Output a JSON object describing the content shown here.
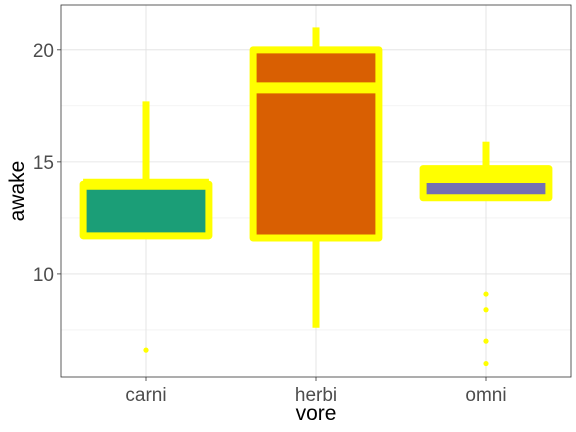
{
  "chart_data": {
    "type": "boxplot",
    "xlabel": "vore",
    "ylabel": "awake",
    "categories": [
      "carni",
      "herbi",
      "omni"
    ],
    "ylim": [
      5.4,
      22
    ],
    "y_ticks": [
      10,
      15,
      20
    ],
    "y_tick_labels": [
      "10",
      "15",
      "20"
    ],
    "grid": true,
    "theme": "light",
    "box_outline_color": "#FFFF00",
    "outlier_color": "#FFFF00",
    "fill_colors": [
      "#1B9E77",
      "#D95F02",
      "#7570B3"
    ],
    "boxes": [
      {
        "category": "carni",
        "lower_whisker": 11.7,
        "q1": 11.7,
        "median": 14.0,
        "q3": 14.0,
        "upper_whisker": 17.7,
        "outliers": [
          6.6
        ]
      },
      {
        "category": "herbi",
        "lower_whisker": 7.6,
        "q1": 11.6,
        "median": 18.3,
        "q3": 20.0,
        "upper_whisker": 21.0,
        "outliers": []
      },
      {
        "category": "omni",
        "lower_whisker": 13.4,
        "q1": 13.4,
        "median": 14.3,
        "q3": 14.7,
        "upper_whisker": 15.9,
        "outliers": [
          9.1,
          8.4,
          7.0,
          6.0
        ]
      }
    ]
  }
}
